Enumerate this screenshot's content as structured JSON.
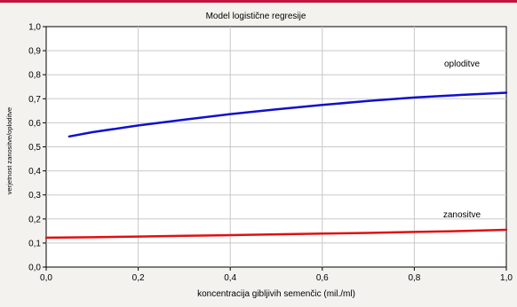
{
  "colors": {
    "accent_line": "#c0143c",
    "background": "#f3f2ef",
    "plot_background": "#ffffff",
    "grid": "#c8c8c8",
    "series_fertilization": "#1010cc",
    "series_pregnancy": "#e01010"
  },
  "chart_data": {
    "type": "line",
    "title": "Model logistične regresije",
    "xlabel": "koncentracija gibljivih semenčic (mil./ml)",
    "ylabel": "verjetnost zanositve/oploditve",
    "xlim": [
      0.0,
      1.0
    ],
    "ylim": [
      0.0,
      1.0
    ],
    "x_ticks": [
      "0,0",
      "0,2",
      "0,4",
      "0,6",
      "0,8",
      "1,0"
    ],
    "y_ticks": [
      "0,0",
      "0,1",
      "0,2",
      "0,3",
      "0,4",
      "0,5",
      "0,6",
      "0,7",
      "0,8",
      "0,9",
      "1,0"
    ],
    "grid": true,
    "series": [
      {
        "name": "oploditve",
        "color": "#1010cc",
        "x": [
          0.05,
          0.1,
          0.2,
          0.3,
          0.4,
          0.5,
          0.6,
          0.7,
          0.8,
          0.9,
          1.0
        ],
        "y": [
          0.543,
          0.561,
          0.589,
          0.613,
          0.636,
          0.656,
          0.674,
          0.691,
          0.705,
          0.716,
          0.725
        ]
      },
      {
        "name": "zanositve",
        "color": "#e01010",
        "x": [
          0.0,
          0.1,
          0.2,
          0.3,
          0.4,
          0.5,
          0.6,
          0.7,
          0.8,
          0.9,
          1.0
        ],
        "y": [
          0.122,
          0.124,
          0.127,
          0.13,
          0.133,
          0.136,
          0.139,
          0.142,
          0.146,
          0.15,
          0.155
        ]
      }
    ]
  }
}
